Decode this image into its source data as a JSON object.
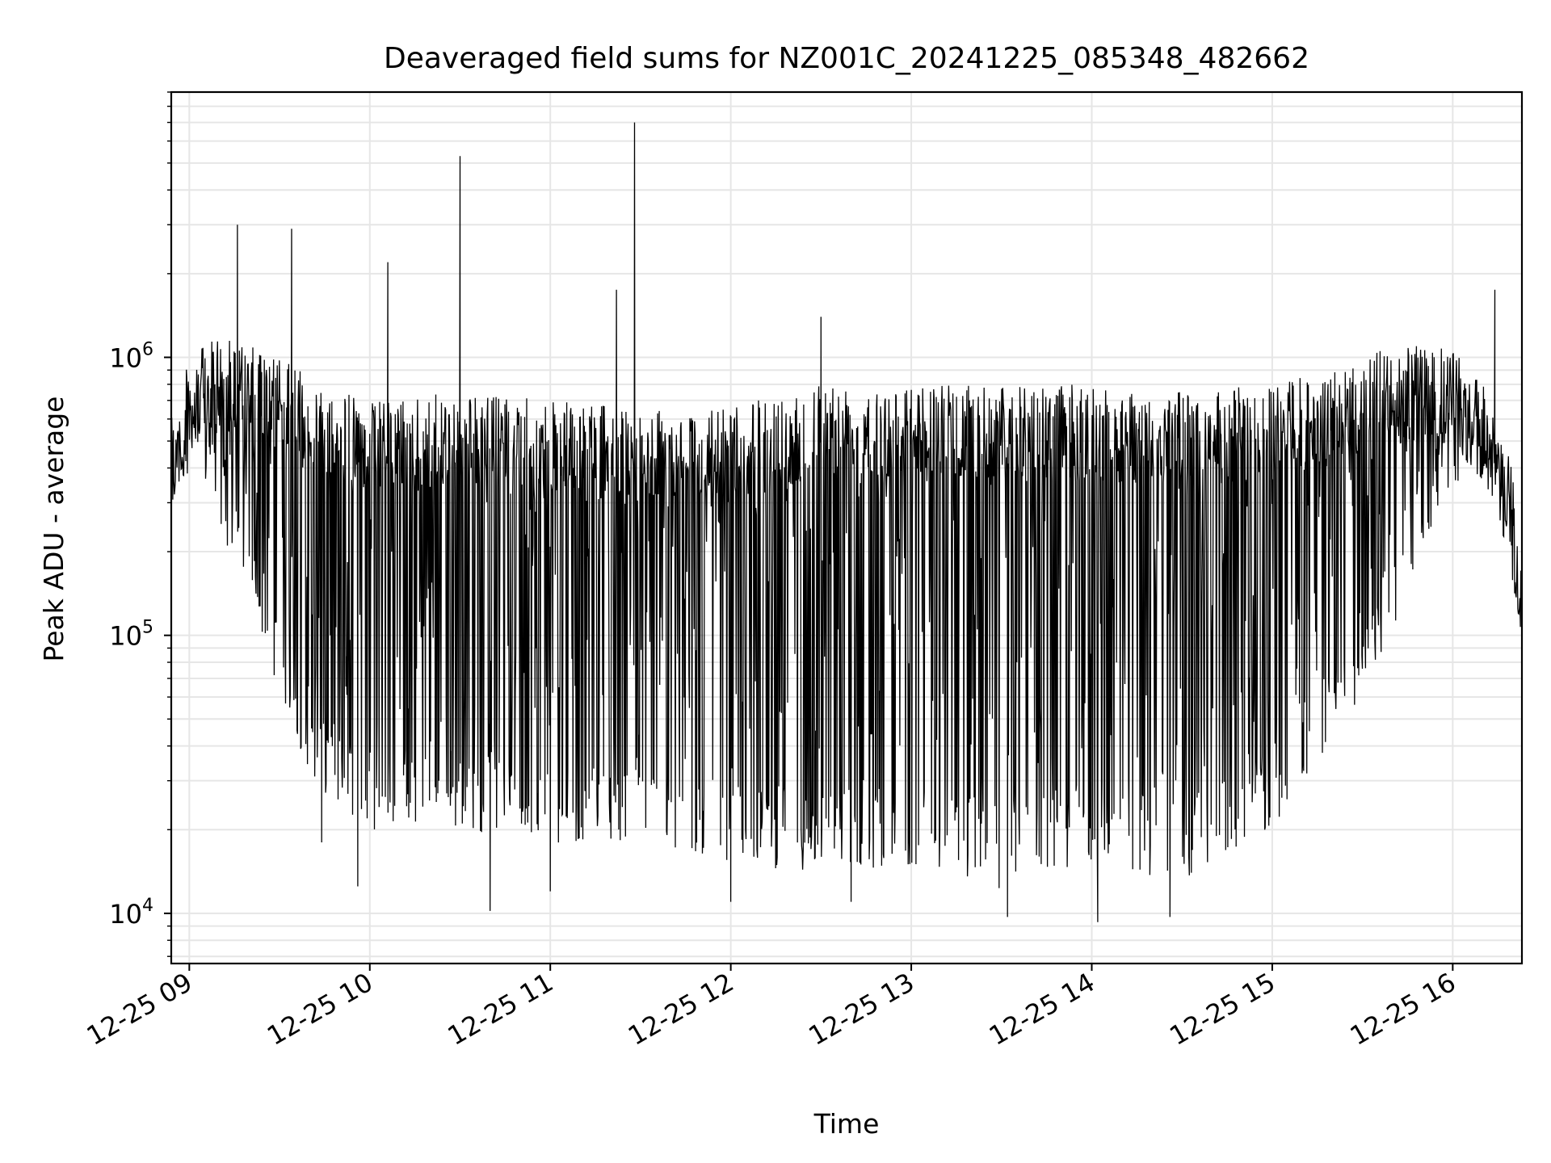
{
  "chart_data": {
    "type": "line",
    "title": "Deaveraged field sums for NZ001C_20241225_085348_482662",
    "xlabel": "Time",
    "ylabel": "Peak ADU - average",
    "x_range": [
      "2024-12-25 08:54",
      "2024-12-25 16:23"
    ],
    "y_scale": "log",
    "ylim": [
      6600,
      9000000
    ],
    "grid": true,
    "line_color": "#000000",
    "x_ticks": [
      {
        "value": "2024-12-25 09:00",
        "label": "12-25 09"
      },
      {
        "value": "2024-12-25 10:00",
        "label": "12-25 10"
      },
      {
        "value": "2024-12-25 11:00",
        "label": "12-25 11"
      },
      {
        "value": "2024-12-25 12:00",
        "label": "12-25 12"
      },
      {
        "value": "2024-12-25 13:00",
        "label": "12-25 13"
      },
      {
        "value": "2024-12-25 14:00",
        "label": "12-25 14"
      },
      {
        "value": "2024-12-25 15:00",
        "label": "12-25 15"
      },
      {
        "value": "2024-12-25 16:00",
        "label": "12-25 16"
      }
    ],
    "y_ticks": [
      {
        "value": 10000,
        "base": "10",
        "exp": "4"
      },
      {
        "value": 100000,
        "base": "10",
        "exp": "5"
      },
      {
        "value": 1000000,
        "base": "10",
        "exp": "6"
      }
    ],
    "series": [
      {
        "values": [
          {
            "t": "2024-12-25 08:54",
            "upper": 600000,
            "lower": 250000
          },
          {
            "t": "2024-12-25 09:00",
            "upper": 1000000,
            "lower": 400000
          },
          {
            "t": "2024-12-25 09:10",
            "upper": 1200000,
            "lower": 250000
          },
          {
            "t": "2024-12-25 09:20",
            "upper": 1100000,
            "lower": 120000
          },
          {
            "t": "2024-12-25 09:30",
            "upper": 1000000,
            "lower": 60000
          },
          {
            "t": "2024-12-25 09:40",
            "upper": 850000,
            "lower": 30000
          },
          {
            "t": "2024-12-25 10:00",
            "upper": 700000,
            "lower": 20000
          },
          {
            "t": "2024-12-25 10:30",
            "upper": 750000,
            "lower": 20000
          },
          {
            "t": "2024-12-25 11:00",
            "upper": 700000,
            "lower": 18000
          },
          {
            "t": "2024-12-25 11:30",
            "upper": 650000,
            "lower": 17000
          },
          {
            "t": "2024-12-25 12:00",
            "upper": 650000,
            "lower": 15000
          },
          {
            "t": "2024-12-25 12:30",
            "upper": 850000,
            "lower": 14000
          },
          {
            "t": "2024-12-25 13:00",
            "upper": 800000,
            "lower": 15000
          },
          {
            "t": "2024-12-25 13:30",
            "upper": 800000,
            "lower": 12000
          },
          {
            "t": "2024-12-25 14:00",
            "upper": 800000,
            "lower": 15000
          },
          {
            "t": "2024-12-25 14:30",
            "upper": 750000,
            "lower": 13000
          },
          {
            "t": "2024-12-25 15:00",
            "upper": 800000,
            "lower": 20000
          },
          {
            "t": "2024-12-25 15:20",
            "upper": 900000,
            "lower": 40000
          },
          {
            "t": "2024-12-25 15:40",
            "upper": 1100000,
            "lower": 100000
          },
          {
            "t": "2024-12-25 16:00",
            "upper": 1100000,
            "lower": 350000
          },
          {
            "t": "2024-12-25 16:10",
            "upper": 800000,
            "lower": 400000
          },
          {
            "t": "2024-12-25 16:20",
            "upper": 400000,
            "lower": 150000
          },
          {
            "t": "2024-12-25 16:23",
            "upper": 160000,
            "lower": 100000
          }
        ],
        "spikes": [
          {
            "t": "2024-12-25 09:16",
            "value": 3000000
          },
          {
            "t": "2024-12-25 09:34",
            "value": 2900000
          },
          {
            "t": "2024-12-25 10:06",
            "value": 2200000
          },
          {
            "t": "2024-12-25 10:30",
            "value": 5300000
          },
          {
            "t": "2024-12-25 11:22",
            "value": 1750000
          },
          {
            "t": "2024-12-25 11:28",
            "value": 7000000
          },
          {
            "t": "2024-12-25 12:30",
            "value": 1400000
          },
          {
            "t": "2024-12-25 16:14",
            "value": 1750000
          }
        ],
        "dips": [
          {
            "t": "2024-12-25 09:44",
            "value": 18000
          },
          {
            "t": "2024-12-25 09:56",
            "value": 12500
          },
          {
            "t": "2024-12-25 10:40",
            "value": 10200
          },
          {
            "t": "2024-12-25 11:00",
            "value": 12000
          },
          {
            "t": "2024-12-25 12:00",
            "value": 11000
          },
          {
            "t": "2024-12-25 12:40",
            "value": 11000
          },
          {
            "t": "2024-12-25 13:32",
            "value": 9700
          },
          {
            "t": "2024-12-25 14:02",
            "value": 9300
          },
          {
            "t": "2024-12-25 14:26",
            "value": 9700
          }
        ]
      }
    ]
  }
}
